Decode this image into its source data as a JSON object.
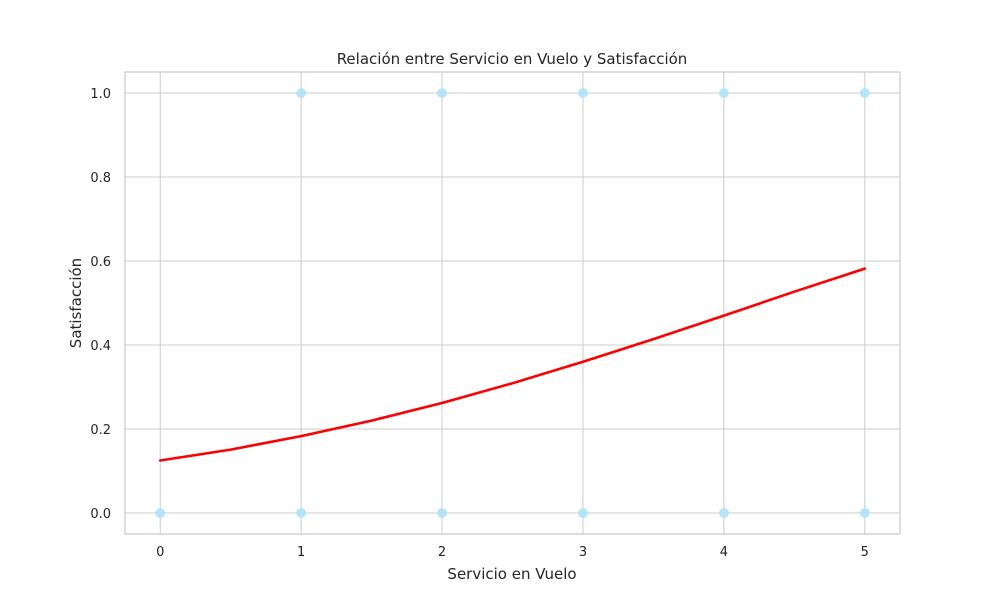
{
  "chart_data": {
    "type": "scatter",
    "title": "Relación entre Servicio en Vuelo y Satisfacción",
    "xlabel": "Servicio en Vuelo",
    "ylabel": "Satisfacción",
    "xlim": [
      -0.25,
      5.25
    ],
    "ylim": [
      -0.05,
      1.05
    ],
    "x_ticks": [
      "0",
      "1",
      "2",
      "3",
      "4",
      "5"
    ],
    "y_ticks": [
      "0.0",
      "0.2",
      "0.4",
      "0.6",
      "0.8",
      "1.0"
    ],
    "grid": true,
    "points": [
      {
        "x": 0,
        "y": 0
      },
      {
        "x": 1,
        "y": 0
      },
      {
        "x": 2,
        "y": 0
      },
      {
        "x": 3,
        "y": 0
      },
      {
        "x": 4,
        "y": 0
      },
      {
        "x": 5,
        "y": 0
      },
      {
        "x": 1,
        "y": 1
      },
      {
        "x": 2,
        "y": 1
      },
      {
        "x": 3,
        "y": 1
      },
      {
        "x": 4,
        "y": 1
      },
      {
        "x": 5,
        "y": 1
      }
    ],
    "point_color": "#ade3fa",
    "curve": {
      "x": [
        0,
        0.5,
        1,
        1.5,
        2,
        2.5,
        3,
        3.5,
        4,
        4.5,
        5
      ],
      "y": [
        0.125,
        0.151,
        0.183,
        0.22,
        0.262,
        0.309,
        0.36,
        0.414,
        0.47,
        0.527,
        0.582
      ],
      "color": "#ff0000"
    }
  }
}
